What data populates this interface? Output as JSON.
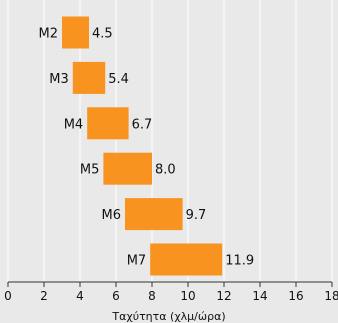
{
  "chart_data": {
    "type": "bar",
    "orientation": "horizontal-floating",
    "title": "",
    "xlabel": "Ταχύτητα (χλμ/ώρα)",
    "ylabel": "",
    "xlim": [
      0,
      18
    ],
    "x_ticks": [
      "0",
      "2",
      "4",
      "6",
      "8",
      "10",
      "12",
      "14",
      "16",
      "18"
    ],
    "grid": true,
    "bar_color": "#f7931e",
    "categories": [
      "M2",
      "M3",
      "M4",
      "M5",
      "M6",
      "M7"
    ],
    "bars": [
      {
        "category": "M2",
        "start": 3.0,
        "end": 4.5,
        "label": "4.5"
      },
      {
        "category": "M3",
        "start": 3.6,
        "end": 5.4,
        "label": "5.4"
      },
      {
        "category": "M4",
        "start": 4.4,
        "end": 6.7,
        "label": "6.7"
      },
      {
        "category": "M5",
        "start": 5.3,
        "end": 8.0,
        "label": "8.0"
      },
      {
        "category": "M6",
        "start": 6.5,
        "end": 9.7,
        "label": "9.7"
      },
      {
        "category": "M7",
        "start": 7.9,
        "end": 11.9,
        "label": "11.9"
      }
    ]
  }
}
